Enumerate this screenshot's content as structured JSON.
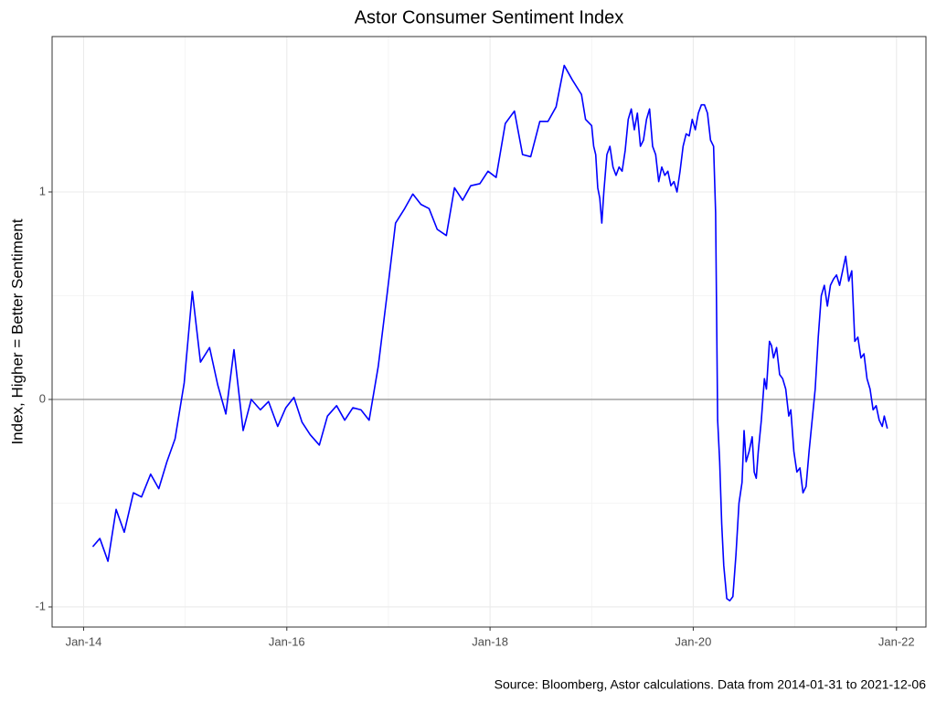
{
  "chart_data": {
    "type": "line",
    "title": "Astor Consumer Sentiment Index",
    "y_label": "Index, Higher = Better Sentiment",
    "caption": "Source: Bloomberg, Astor calculations. Data from 2014-01-31 to 2021-12-06",
    "xlim": [
      2013.69,
      2022.29
    ],
    "xticks": [
      {
        "value": 2014,
        "label": "Jan-14"
      },
      {
        "value": 2016,
        "label": "Jan-16"
      },
      {
        "value": 2018,
        "label": "Jan-18"
      },
      {
        "value": 2020,
        "label": "Jan-20"
      },
      {
        "value": 2022,
        "label": "Jan-22"
      }
    ],
    "ylim": [
      -1.097,
      1.749
    ],
    "yticks": [
      -1,
      0,
      1
    ],
    "grid": true,
    "hline": 0,
    "series": [
      {
        "color": "#0000ff",
        "x": [
          2014.09,
          2014.16,
          2014.24,
          2014.32,
          2014.4,
          2014.49,
          2014.57,
          2014.66,
          2014.74,
          2014.82,
          2014.9,
          2014.99,
          2015.07,
          2015.15,
          2015.24,
          2015.32,
          2015.4,
          2015.48,
          2015.57,
          2015.65,
          2015.74,
          2015.82,
          2015.91,
          2015.99,
          2016.07,
          2016.15,
          2016.23,
          2016.32,
          2016.4,
          2016.49,
          2016.57,
          2016.65,
          2016.73,
          2016.81,
          2016.9,
          2016.99,
          2017.07,
          2017.16,
          2017.24,
          2017.32,
          2017.4,
          2017.48,
          2017.57,
          2017.65,
          2017.73,
          2017.81,
          2017.9,
          2017.98,
          2018.06,
          2018.15,
          2018.24,
          2018.32,
          2018.4,
          2018.49,
          2018.57,
          2018.65,
          2018.73,
          2018.81,
          2018.9,
          2018.94,
          2019.0,
          2019.02,
          2019.04,
          2019.06,
          2019.08,
          2019.1,
          2019.12,
          2019.15,
          2019.18,
          2019.21,
          2019.24,
          2019.27,
          2019.3,
          2019.33,
          2019.36,
          2019.39,
          2019.42,
          2019.45,
          2019.48,
          2019.51,
          2019.54,
          2019.57,
          2019.6,
          2019.63,
          2019.66,
          2019.69,
          2019.72,
          2019.75,
          2019.78,
          2019.81,
          2019.84,
          2019.87,
          2019.9,
          2019.93,
          2019.96,
          2019.99,
          2020.02,
          2020.05,
          2020.08,
          2020.11,
          2020.14,
          2020.17,
          2020.2,
          2020.22,
          2020.24,
          2020.26,
          2020.28,
          2020.3,
          2020.33,
          2020.36,
          2020.39,
          2020.42,
          2020.45,
          2020.48,
          2020.5,
          2020.52,
          2020.55,
          2020.58,
          2020.6,
          2020.62,
          2020.64,
          2020.67,
          2020.7,
          2020.72,
          2020.75,
          2020.77,
          2020.79,
          2020.82,
          2020.85,
          2020.88,
          2020.91,
          2020.94,
          2020.96,
          2020.99,
          2021.02,
          2021.05,
          2021.08,
          2021.11,
          2021.14,
          2021.17,
          2021.2,
          2021.23,
          2021.26,
          2021.29,
          2021.32,
          2021.35,
          2021.38,
          2021.41,
          2021.44,
          2021.47,
          2021.5,
          2021.53,
          2021.56,
          2021.59,
          2021.62,
          2021.65,
          2021.68,
          2021.71,
          2021.74,
          2021.77,
          2021.8,
          2021.83,
          2021.86,
          2021.88,
          2021.91
        ],
        "values": [
          -0.71,
          -0.67,
          -0.78,
          -0.53,
          -0.64,
          -0.45,
          -0.47,
          -0.36,
          -0.43,
          -0.3,
          -0.19,
          0.08,
          0.52,
          0.18,
          0.25,
          0.07,
          -0.07,
          0.24,
          -0.15,
          0.0,
          -0.05,
          -0.01,
          -0.13,
          -0.04,
          0.01,
          -0.11,
          -0.17,
          -0.22,
          -0.08,
          -0.03,
          -0.1,
          -0.04,
          -0.05,
          -0.1,
          0.16,
          0.52,
          0.85,
          0.92,
          0.99,
          0.94,
          0.92,
          0.82,
          0.79,
          1.02,
          0.96,
          1.03,
          1.04,
          1.1,
          1.07,
          1.33,
          1.39,
          1.18,
          1.17,
          1.34,
          1.34,
          1.41,
          1.61,
          1.54,
          1.47,
          1.35,
          1.32,
          1.22,
          1.18,
          1.02,
          0.97,
          0.85,
          1.0,
          1.18,
          1.22,
          1.12,
          1.08,
          1.12,
          1.1,
          1.2,
          1.35,
          1.4,
          1.3,
          1.38,
          1.22,
          1.25,
          1.35,
          1.4,
          1.22,
          1.18,
          1.05,
          1.12,
          1.08,
          1.1,
          1.03,
          1.05,
          1.0,
          1.1,
          1.22,
          1.28,
          1.27,
          1.35,
          1.3,
          1.38,
          1.42,
          1.42,
          1.38,
          1.25,
          1.22,
          0.9,
          -0.1,
          -0.3,
          -0.6,
          -0.8,
          -0.96,
          -0.97,
          -0.95,
          -0.75,
          -0.5,
          -0.4,
          -0.15,
          -0.3,
          -0.25,
          -0.18,
          -0.35,
          -0.38,
          -0.25,
          -0.1,
          0.1,
          0.05,
          0.28,
          0.26,
          0.2,
          0.25,
          0.12,
          0.1,
          0.05,
          -0.08,
          -0.05,
          -0.25,
          -0.35,
          -0.33,
          -0.45,
          -0.42,
          -0.25,
          -0.1,
          0.05,
          0.3,
          0.5,
          0.55,
          0.45,
          0.55,
          0.58,
          0.6,
          0.55,
          0.62,
          0.69,
          0.57,
          0.62,
          0.28,
          0.3,
          0.2,
          0.22,
          0.1,
          0.05,
          -0.05,
          -0.03,
          -0.1,
          -0.13,
          -0.08,
          -0.14
        ]
      }
    ]
  }
}
